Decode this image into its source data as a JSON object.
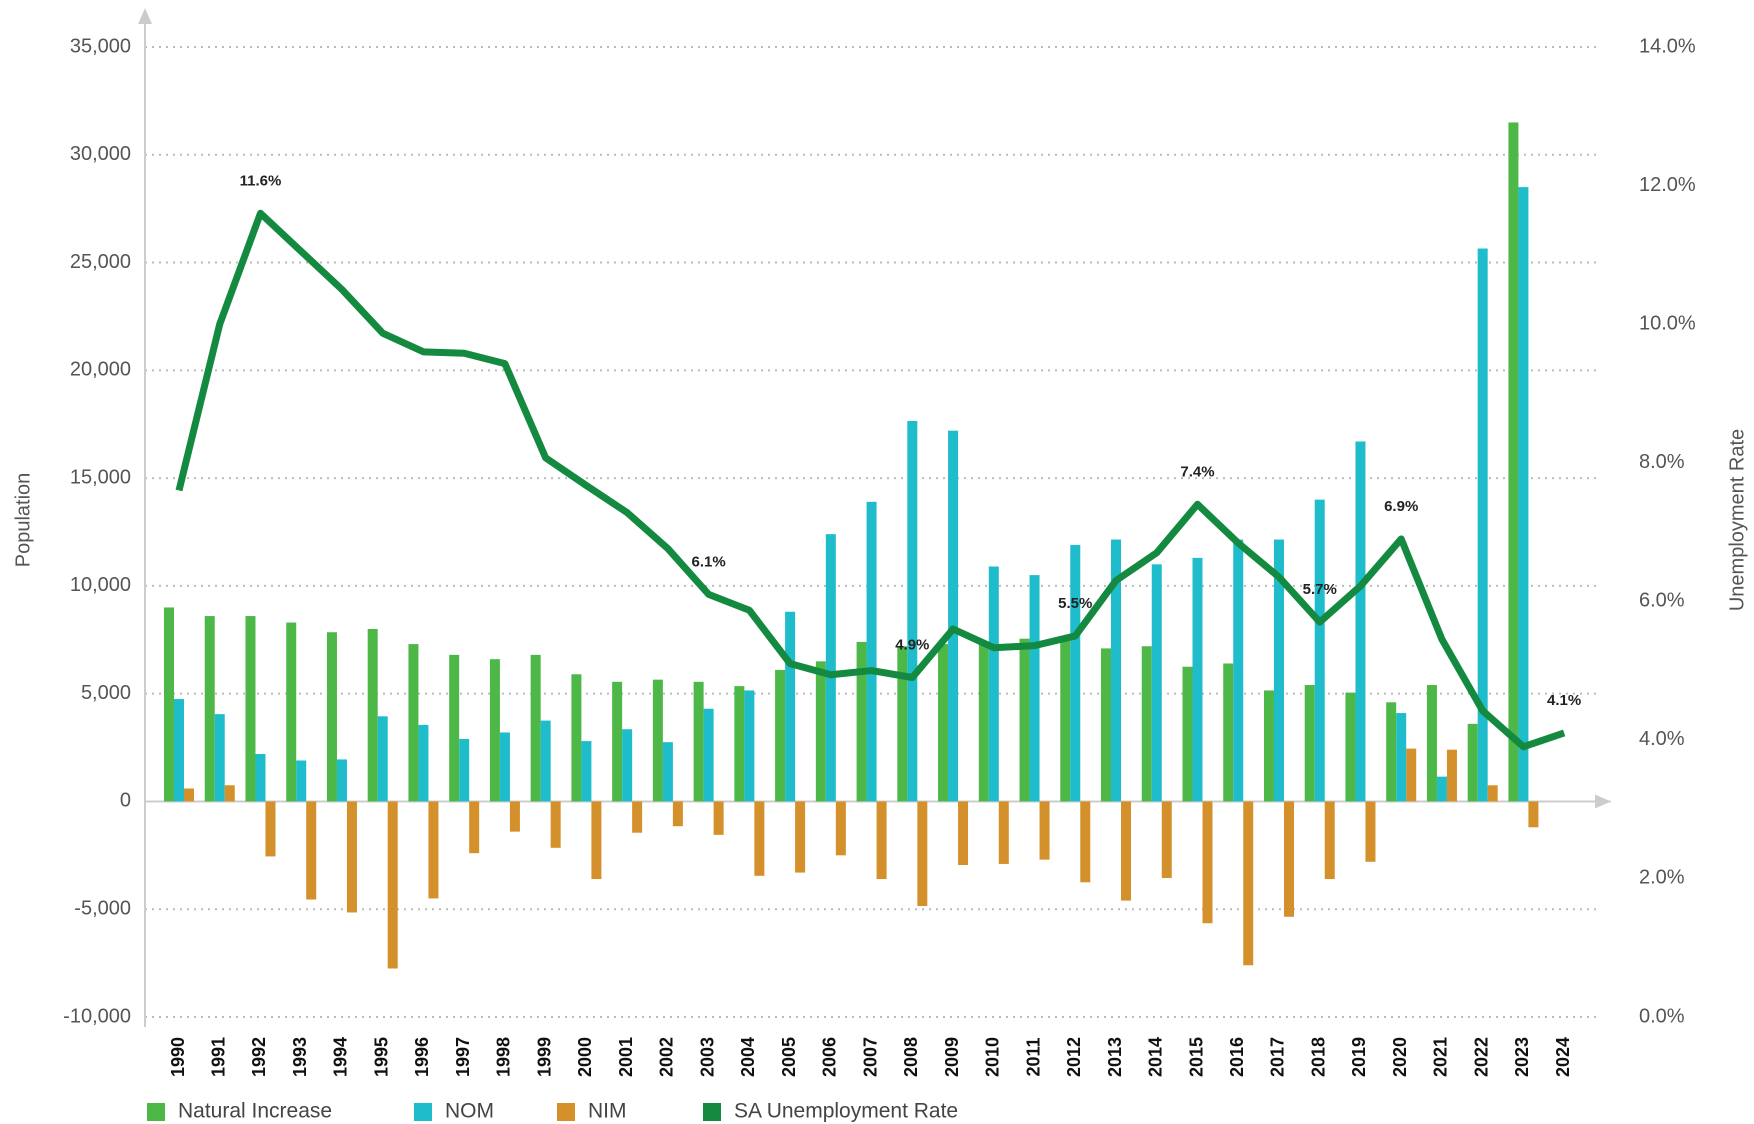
{
  "chart_data": {
    "type": "bar-line",
    "categories": [
      "1990",
      "1991",
      "1992",
      "1993",
      "1994",
      "1995",
      "1996",
      "1997",
      "1998",
      "1999",
      "2000",
      "2001",
      "2002",
      "2003",
      "2004",
      "2005",
      "2006",
      "2007",
      "2008",
      "2009",
      "2010",
      "2011",
      "2012",
      "2013",
      "2014",
      "2015",
      "2016",
      "2017",
      "2018",
      "2019",
      "2020",
      "2021",
      "2022",
      "2023",
      "2024"
    ],
    "series": [
      {
        "name": "Natural Increase",
        "type": "bar",
        "color": "#4db848",
        "values": [
          9000,
          8600,
          8600,
          8300,
          7850,
          8000,
          7300,
          6800,
          6600,
          6800,
          5900,
          5550,
          5650,
          5550,
          5350,
          6100,
          6500,
          7400,
          7200,
          7300,
          7300,
          7550,
          7600,
          7100,
          7200,
          6250,
          6400,
          5150,
          5400,
          5050,
          4600,
          5400,
          3600,
          31500,
          null
        ]
      },
      {
        "name": "NOM",
        "type": "bar",
        "color": "#1fbccb",
        "values": [
          4750,
          4050,
          2200,
          1900,
          1950,
          3950,
          3550,
          2900,
          3200,
          3750,
          2800,
          3350,
          2750,
          4300,
          5150,
          8800,
          12400,
          13900,
          17650,
          17200,
          10900,
          10500,
          11900,
          12150,
          11000,
          11300,
          12150,
          12150,
          14000,
          16700,
          4100,
          1150,
          25650,
          28500,
          null
        ]
      },
      {
        "name": "NIM",
        "type": "bar",
        "color": "#d4902a",
        "values": [
          600,
          750,
          -2550,
          -4550,
          -5150,
          -7750,
          -4500,
          -2400,
          -1400,
          -2150,
          -3600,
          -1450,
          -1150,
          -1550,
          -3450,
          -3300,
          -2500,
          -3600,
          -4850,
          -2950,
          -2900,
          -2700,
          -3750,
          -4600,
          -3550,
          -5650,
          -7600,
          -5350,
          -3600,
          -2800,
          2450,
          2400,
          750,
          -1200,
          null
        ]
      },
      {
        "name": "SA Unemployment Rate",
        "type": "line",
        "axis": "y2",
        "color": "#138a3f",
        "values": [
          7.6,
          10.0,
          11.6,
          11.05,
          10.5,
          9.87,
          9.6,
          9.58,
          9.43,
          8.07,
          7.67,
          7.28,
          6.76,
          6.1,
          5.87,
          5.1,
          4.94,
          5.0,
          4.9,
          5.6,
          5.33,
          5.36,
          5.5,
          6.3,
          6.7,
          7.4,
          6.84,
          6.35,
          5.7,
          6.22,
          6.9,
          5.45,
          4.42,
          3.9,
          4.1
        ],
        "value_labels": [
          null,
          null,
          "11.6%",
          null,
          null,
          null,
          null,
          null,
          null,
          null,
          null,
          null,
          null,
          "6.1%",
          null,
          null,
          null,
          null,
          "4.9%",
          null,
          null,
          null,
          "5.5%",
          null,
          null,
          "7.4%",
          null,
          null,
          "5.7%",
          null,
          "6.9%",
          null,
          null,
          null,
          "4.1%"
        ]
      }
    ],
    "ylabel": "Population",
    "y2label": "Unemployment Rate",
    "ylim": [
      -10000,
      35000
    ],
    "yticks": [
      {
        "value": -10000,
        "label": "-10,000"
      },
      {
        "value": -5000,
        "label": "-5,000"
      },
      0,
      {
        "value": 5000,
        "label": "5,000"
      },
      {
        "value": 10000,
        "label": "10,000"
      },
      {
        "value": 15000,
        "label": "15,000"
      },
      {
        "value": 20000,
        "label": "20,000"
      },
      {
        "value": 25000,
        "label": "25,000"
      },
      {
        "value": 30000,
        "label": "30,000"
      },
      {
        "value": 35000,
        "label": "35,000"
      }
    ],
    "y2lim": [
      0,
      14
    ],
    "y2ticks": [
      {
        "value": 0,
        "label": "0.0%"
      },
      {
        "value": 2,
        "label": "2.0%"
      },
      {
        "value": 4,
        "label": "4.0%"
      },
      {
        "value": 6,
        "label": "6.0%"
      },
      {
        "value": 8,
        "label": "8.0%"
      },
      {
        "value": 10,
        "label": "10.0%"
      },
      {
        "value": 12,
        "label": "12.0%"
      },
      {
        "value": 14,
        "label": "14.0%"
      }
    ],
    "grid": true,
    "legend": "bottom"
  }
}
